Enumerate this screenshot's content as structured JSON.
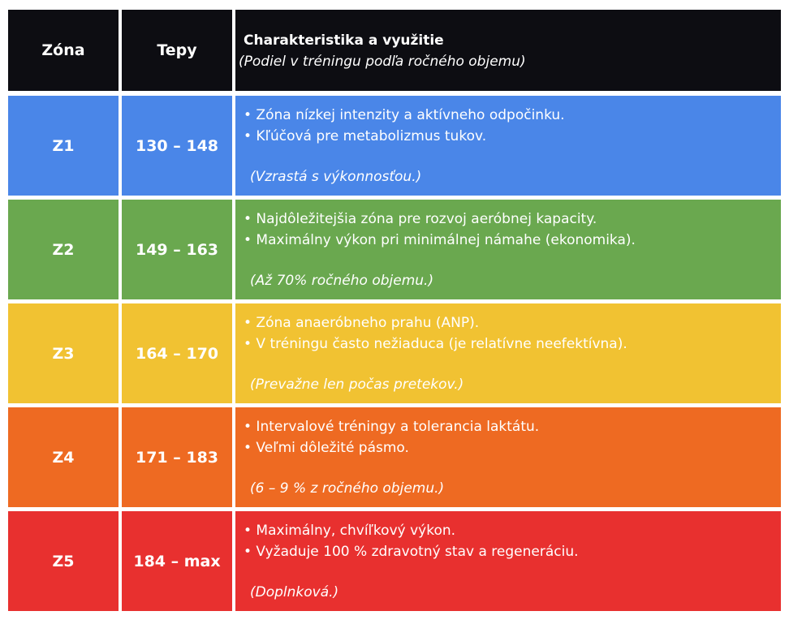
{
  "header": {
    "zone": "Zóna",
    "bpm": "Tepy",
    "description": {
      "title": "Charakteristika a využitie",
      "subtitle": "(Podiel v tréningu podľa ročného objemu)"
    }
  },
  "rows": [
    {
      "zone": "Z1",
      "bpm": "130 – 148",
      "bullets": [
        "• Zóna nízkej intenzity a aktívneho odpočinku.",
        "• Kľúčová pre metabolizmus tukov."
      ],
      "note": "(Vzrastá s výkonnosťou.)"
    },
    {
      "zone": "Z2",
      "bpm": "149 – 163",
      "bullets": [
        "• Najdôležitejšia zóna pre rozvoj aeróbnej kapacity.",
        "• Maximálny výkon pri minimálnej námahe (ekonomika)."
      ],
      "note": "(Až 70% ročného objemu.)"
    },
    {
      "zone": "Z3",
      "bpm": "164 – 170",
      "bullets": [
        "• Zóna anaeróbneho prahu (ANP).",
        "• V tréningu často nežiaduca (je relatívne neefektívna)."
      ],
      "note": "(Prevažne len počas pretekov.)"
    },
    {
      "zone": "Z4",
      "bpm": "171 – 183",
      "bullets": [
        "• Intervalové tréningy a tolerancia laktátu.",
        "• Veľmi dôležité pásmo."
      ],
      "note": "(6 – 9 % z ročného objemu.)"
    },
    {
      "zone": "Z5",
      "bpm": "184 – max",
      "bullets": [
        "• Maximálny, chvíľkový výkon.",
        "• Vyžaduje 100 % zdravotný stav a regeneráciu."
      ],
      "note": "(Doplnková.)"
    }
  ]
}
